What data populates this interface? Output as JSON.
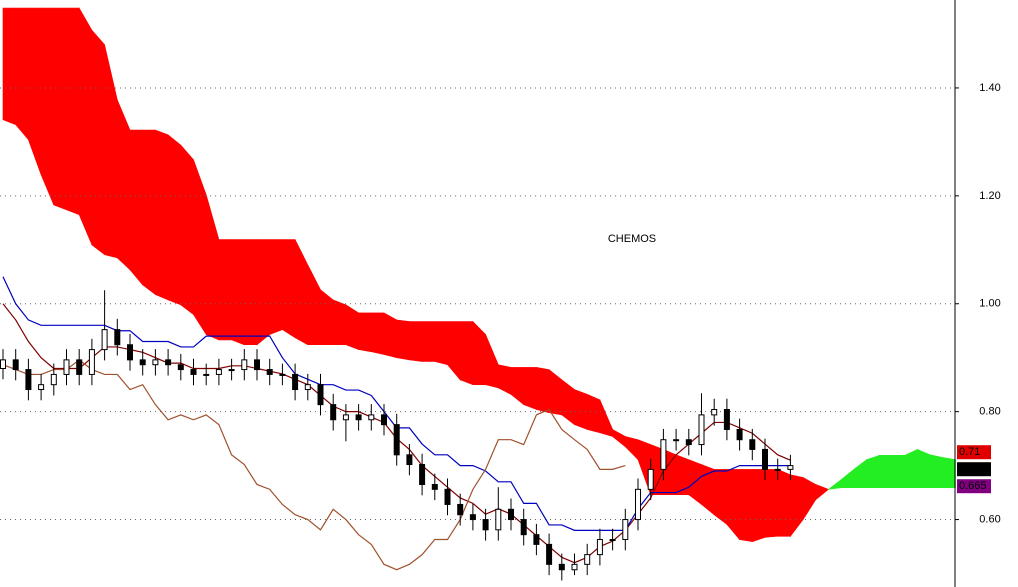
{
  "chart_data": {
    "type": "candlestick",
    "title": "CHEMOS",
    "ylim": [
      0.475,
      1.563
    ],
    "yticks": [
      {
        "value": 0.6,
        "label": "0.60"
      },
      {
        "value": 0.8,
        "label": "0.80"
      },
      {
        "value": 1.0,
        "label": "1.00"
      },
      {
        "value": 1.2,
        "label": "1.20"
      },
      {
        "value": 1.4,
        "label": "1.40"
      }
    ],
    "grid": true,
    "candles": {
      "up_color": "#ffffff",
      "down_color": "#000000",
      "open": [
        0.88,
        0.896,
        0.878,
        0.841,
        0.85,
        0.869,
        0.896,
        0.869,
        0.915,
        0.952,
        0.924,
        0.896,
        0.887,
        0.896,
        0.887,
        0.878,
        0.869,
        0.869,
        0.878,
        0.878,
        0.896,
        0.878,
        0.869,
        0.869,
        0.841,
        0.85,
        0.813,
        0.785,
        0.794,
        0.785,
        0.794,
        0.776,
        0.72,
        0.702,
        0.665,
        0.656,
        0.628,
        0.609,
        0.6,
        0.581,
        0.619,
        0.6,
        0.572,
        0.554,
        0.517,
        0.507,
        0.517,
        0.535,
        0.563,
        0.563,
        0.6,
        0.656,
        0.693,
        0.748,
        0.748,
        0.739,
        0.794,
        0.804,
        0.767,
        0.748,
        0.73,
        0.693,
        0.693
      ],
      "high": [
        0.916,
        0.916,
        0.898,
        0.87,
        0.889,
        0.916,
        0.916,
        0.935,
        1.025,
        0.972,
        0.944,
        0.916,
        0.916,
        0.916,
        0.907,
        0.898,
        0.889,
        0.898,
        0.898,
        0.916,
        0.916,
        0.898,
        0.889,
        0.889,
        0.87,
        0.87,
        0.833,
        0.814,
        0.814,
        0.814,
        0.814,
        0.796,
        0.74,
        0.722,
        0.685,
        0.676,
        0.648,
        0.629,
        0.62,
        0.66,
        0.639,
        0.62,
        0.592,
        0.574,
        0.537,
        0.537,
        0.555,
        0.583,
        0.583,
        0.62,
        0.676,
        0.713,
        0.768,
        0.768,
        0.768,
        0.834,
        0.824,
        0.824,
        0.787,
        0.768,
        0.75,
        0.713,
        0.72
      ],
      "low": [
        0.86,
        0.858,
        0.821,
        0.821,
        0.83,
        0.849,
        0.849,
        0.849,
        0.895,
        0.904,
        0.876,
        0.867,
        0.867,
        0.867,
        0.858,
        0.849,
        0.849,
        0.849,
        0.858,
        0.858,
        0.858,
        0.849,
        0.849,
        0.821,
        0.821,
        0.793,
        0.765,
        0.745,
        0.765,
        0.765,
        0.756,
        0.7,
        0.682,
        0.645,
        0.636,
        0.608,
        0.589,
        0.58,
        0.561,
        0.561,
        0.58,
        0.552,
        0.534,
        0.497,
        0.487,
        0.497,
        0.497,
        0.515,
        0.543,
        0.543,
        0.58,
        0.636,
        0.673,
        0.728,
        0.719,
        0.719,
        0.774,
        0.747,
        0.728,
        0.71,
        0.673,
        0.673,
        0.673
      ],
      "close": [
        0.896,
        0.878,
        0.841,
        0.85,
        0.869,
        0.896,
        0.869,
        0.915,
        0.952,
        0.924,
        0.896,
        0.887,
        0.896,
        0.887,
        0.878,
        0.869,
        0.869,
        0.878,
        0.878,
        0.896,
        0.878,
        0.869,
        0.869,
        0.841,
        0.85,
        0.813,
        0.785,
        0.794,
        0.785,
        0.794,
        0.776,
        0.72,
        0.702,
        0.665,
        0.656,
        0.628,
        0.609,
        0.6,
        0.581,
        0.619,
        0.6,
        0.572,
        0.554,
        0.517,
        0.507,
        0.517,
        0.535,
        0.563,
        0.563,
        0.6,
        0.656,
        0.693,
        0.748,
        0.748,
        0.739,
        0.794,
        0.804,
        0.767,
        0.748,
        0.73,
        0.693,
        0.693,
        0.7
      ]
    },
    "lines": [
      {
        "color": "#800000",
        "values": [
          1.0,
          0.97,
          0.93,
          0.9,
          0.88,
          0.88,
          0.88,
          0.9,
          0.92,
          0.92,
          0.915,
          0.91,
          0.9,
          0.89,
          0.89,
          0.88,
          0.88,
          0.88,
          0.885,
          0.885,
          0.88,
          0.875,
          0.87,
          0.86,
          0.85,
          0.83,
          0.81,
          0.8,
          0.8,
          0.79,
          0.78,
          0.75,
          0.73,
          0.7,
          0.68,
          0.66,
          0.64,
          0.63,
          0.61,
          0.62,
          0.61,
          0.59,
          0.57,
          0.55,
          0.53,
          0.52,
          0.53,
          0.55,
          0.56,
          0.58,
          0.61,
          0.64,
          0.69,
          0.72,
          0.74,
          0.76,
          0.78,
          0.78,
          0.77,
          0.76,
          0.74,
          0.72,
          0.71
        ]
      },
      {
        "color": "#0000c0",
        "values": [
          1.05,
          1.0,
          0.97,
          0.96,
          0.96,
          0.96,
          0.96,
          0.96,
          0.96,
          0.95,
          0.95,
          0.93,
          0.93,
          0.93,
          0.92,
          0.92,
          0.94,
          0.94,
          0.94,
          0.94,
          0.94,
          0.94,
          0.9,
          0.87,
          0.86,
          0.85,
          0.85,
          0.84,
          0.84,
          0.83,
          0.8,
          0.77,
          0.77,
          0.74,
          0.72,
          0.72,
          0.7,
          0.7,
          0.69,
          0.67,
          0.67,
          0.63,
          0.63,
          0.59,
          0.59,
          0.58,
          0.58,
          0.58,
          0.58,
          0.58,
          0.62,
          0.65,
          0.65,
          0.65,
          0.66,
          0.68,
          0.69,
          0.69,
          0.7,
          0.7,
          0.7,
          0.7,
          0.7
        ]
      },
      {
        "color": "#a0522d",
        "values": [
          0.887,
          0.878,
          0.869,
          0.869,
          0.878,
          0.878,
          0.896,
          0.878,
          0.869,
          0.869,
          0.841,
          0.85,
          0.813,
          0.785,
          0.794,
          0.785,
          0.794,
          0.776,
          0.72,
          0.702,
          0.665,
          0.656,
          0.628,
          0.609,
          0.6,
          0.581,
          0.619,
          0.6,
          0.572,
          0.554,
          0.517,
          0.507,
          0.517,
          0.535,
          0.563,
          0.563,
          0.6,
          0.656,
          0.693,
          0.748,
          0.748,
          0.739,
          0.794,
          0.804,
          0.767,
          0.748,
          0.73,
          0.693,
          0.693,
          0.7,
          null,
          null,
          null,
          null,
          null,
          null,
          null,
          null,
          null,
          null,
          null,
          null,
          null
        ]
      }
    ],
    "cloud": {
      "bull_color": "#22ee22",
      "bear_color": "#ff0000",
      "span_a": [
        1.341,
        1.332,
        1.304,
        1.239,
        1.183,
        1.174,
        1.165,
        1.109,
        1.091,
        1.085,
        1.063,
        1.035,
        1.017,
        1.007,
        0.998,
        0.98,
        0.943,
        0.933,
        0.933,
        0.924,
        0.924,
        0.943,
        0.952,
        0.937,
        0.924,
        0.924,
        0.924,
        0.924,
        0.915,
        0.911,
        0.906,
        0.9,
        0.896,
        0.893,
        0.893,
        0.887,
        0.859,
        0.85,
        0.85,
        0.844,
        0.832,
        0.813,
        0.804,
        0.798,
        0.794,
        0.776,
        0.767,
        0.761,
        0.754,
        0.735,
        0.711,
        0.646,
        0.646,
        0.646,
        0.646,
        0.628,
        0.609,
        0.591,
        0.563,
        0.559,
        0.567,
        0.569,
        0.569,
        0.6,
        0.637,
        0.656,
        0.674,
        0.693,
        0.711,
        0.719,
        0.719,
        0.719,
        0.73,
        0.72,
        0.715,
        0.711
      ],
      "span_b": [
        1.548,
        1.548,
        1.548,
        1.548,
        1.548,
        1.548,
        1.548,
        1.507,
        1.48,
        1.378,
        1.322,
        1.322,
        1.322,
        1.313,
        1.294,
        1.267,
        1.202,
        1.119,
        1.119,
        1.119,
        1.119,
        1.119,
        1.119,
        1.119,
        1.072,
        1.026,
        1.007,
        0.998,
        0.983,
        0.983,
        0.983,
        0.97,
        0.967,
        0.967,
        0.967,
        0.967,
        0.967,
        0.967,
        0.943,
        0.887,
        0.882,
        0.882,
        0.882,
        0.878,
        0.859,
        0.841,
        0.832,
        0.822,
        0.767,
        0.754,
        0.748,
        0.739,
        0.73,
        0.72,
        0.711,
        0.702,
        0.693,
        0.693,
        0.693,
        0.693,
        0.693,
        0.693,
        0.683,
        0.678,
        0.665,
        0.656,
        0.659,
        0.659,
        0.659,
        0.659,
        0.659,
        0.659,
        0.659,
        0.659,
        0.659,
        0.659
      ]
    },
    "price_labels": [
      {
        "value": 0.71,
        "color": "#e00000",
        "text_color": "#000000"
      },
      {
        "value": 0.7,
        "color": "#000000",
        "text_color": "#ffffff"
      },
      {
        "value": 0.665,
        "color": "#800080",
        "text_color": "#ffffff"
      }
    ]
  }
}
